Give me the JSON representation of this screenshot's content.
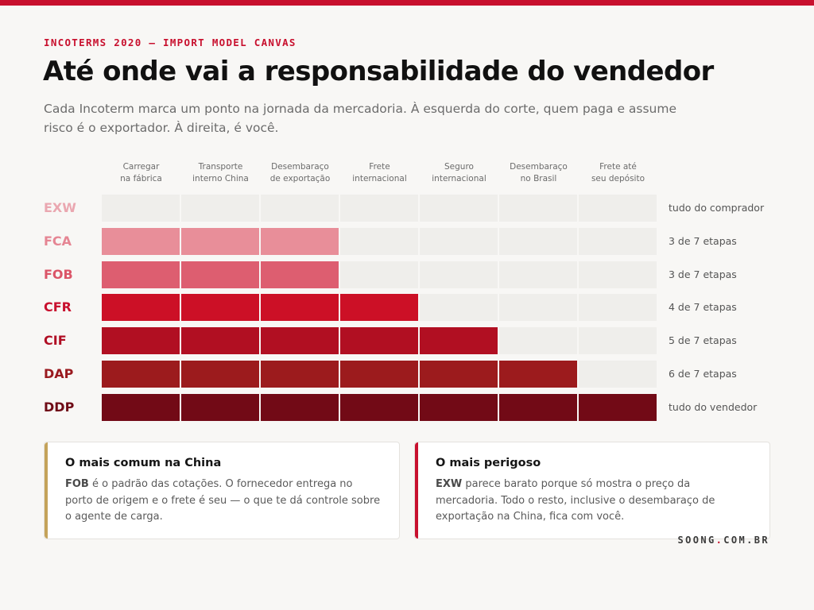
{
  "header": {
    "eyebrow": "INCOTERMS 2020 — IMPORT MODEL CANVAS",
    "title": "Até onde vai a responsabilidade do vendedor",
    "subtitle": "Cada Incoterm marca um ponto na jornada da mercadoria. À esquerda do corte, quem paga e assume risco é o exportador. À direita, é você."
  },
  "chart_data": {
    "type": "heatmap",
    "title": "Até onde vai a responsabilidade do vendedor",
    "stages": [
      [
        "Carregar",
        "na fábrica"
      ],
      [
        "Transporte",
        "interno China"
      ],
      [
        "Desembaraço",
        "de exportação"
      ],
      [
        "Frete",
        "internacional"
      ],
      [
        "Seguro",
        "internacional"
      ],
      [
        "Desembaraço",
        "no Brasil"
      ],
      [
        "Frete até",
        "seu depósito"
      ]
    ],
    "rows": [
      {
        "term": "EXW",
        "seller_stages": 0,
        "summary": "tudo do comprador",
        "color": "#e9a3ab",
        "label_color": "#eaa7b0"
      },
      {
        "term": "FCA",
        "seller_stages": 3,
        "summary": "3 de 7 etapas",
        "color": "#e88e99",
        "label_color": "#e58593"
      },
      {
        "term": "FOB",
        "seller_stages": 3,
        "summary": "3 de 7 etapas",
        "color": "#dd5e70",
        "label_color": "#db5568"
      },
      {
        "term": "CFR",
        "seller_stages": 4,
        "summary": "4 de 7 etapas",
        "color": "#cc1026",
        "label_color": "#c8102e"
      },
      {
        "term": "CIF",
        "seller_stages": 5,
        "summary": "5 de 7 etapas",
        "color": "#b10f22",
        "label_color": "#b00e24"
      },
      {
        "term": "DAP",
        "seller_stages": 6,
        "summary": "6 de 7 etapas",
        "color": "#9c1b1d",
        "label_color": "#9a1a1f"
      },
      {
        "term": "DDP",
        "seller_stages": 7,
        "summary": "tudo do vendedor",
        "color": "#720a16",
        "label_color": "#6f0b16"
      }
    ],
    "empty_color": "#efeeeb"
  },
  "cards": [
    {
      "title": "O mais comum na China",
      "lead": "FOB",
      "body": " é o padrão das cotações. O fornecedor entrega no porto de origem e o frete é seu — o que te dá controle sobre o agente de carga.",
      "accent": "#c4a35a"
    },
    {
      "title": "O mais perigoso",
      "lead": "EXW",
      "body": " parece barato porque só mostra o preço da mercadoria. Todo o resto, inclusive o desembaraço de exportação na China, fica com você.",
      "accent": "#c8102e"
    }
  ],
  "brand": {
    "prefix": "SOONG",
    "dot": ".",
    "suffix": "COM.BR"
  }
}
